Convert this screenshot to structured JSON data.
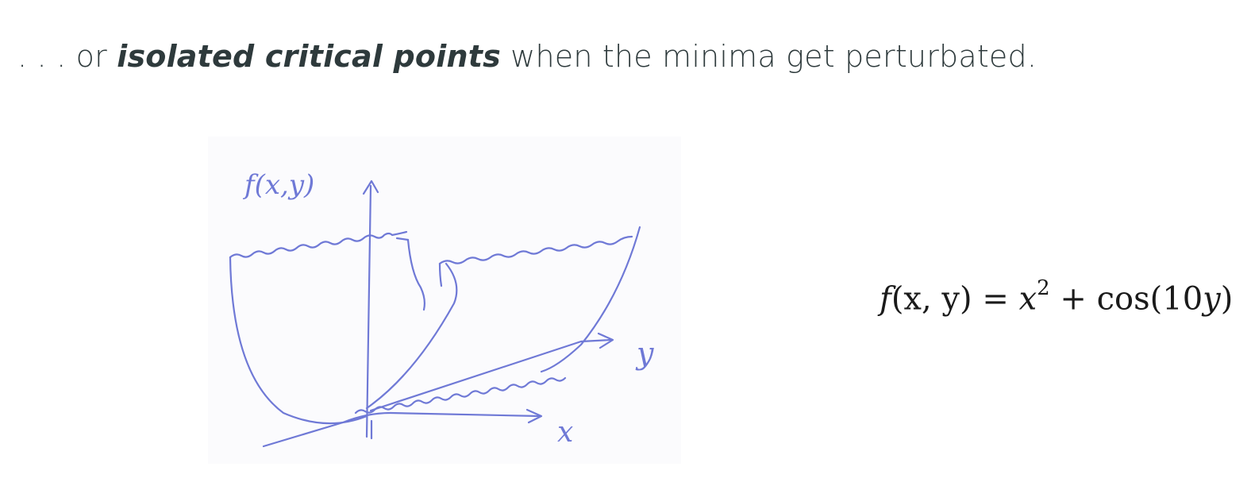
{
  "headline": {
    "prefix": ". . . or ",
    "emphasis": "isolated critical points",
    "suffix": " when the minima get perturbated."
  },
  "sketch": {
    "z_label": "f(x,y)",
    "x_label": "x",
    "y_label": "y",
    "ink_color": "#6f79d6"
  },
  "formula": {
    "lhs_f": "f",
    "lhs_args": "(x, y)",
    "equals": " = ",
    "x": "x",
    "exp": "2",
    "plus": " + ",
    "cos": "cos",
    "arg": "(10",
    "y": "y",
    "close": ")"
  }
}
